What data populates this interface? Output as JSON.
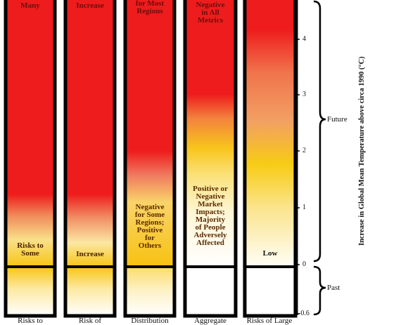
{
  "columns": [
    {
      "top_text": [
        "Many"
      ],
      "low_text": [
        "Risks to",
        "Some"
      ],
      "bottom_label": "Risks to"
    },
    {
      "top_text": [
        "Increase"
      ],
      "low_text": [
        "Increase"
      ],
      "bottom_label": "Risk of"
    },
    {
      "top_text": [
        "for Most",
        "Regions"
      ],
      "mid_text": [
        "Negative",
        "for Some",
        "Regions;",
        "Positive",
        "for",
        "Others"
      ],
      "bottom_label": "Distribution"
    },
    {
      "top_text": [
        "Negative",
        "in All",
        "Metrics"
      ],
      "mid_text": [
        "Positive or",
        "Negative",
        "Market",
        "Impacts;",
        "Majority",
        "of People",
        "Adversely",
        "Affected"
      ],
      "bottom_label": "Aggregate"
    },
    {
      "top_text": [],
      "low_text": [
        "Low"
      ],
      "bottom_label": "Risks of Large"
    }
  ],
  "axis": {
    "title": "Increase in Global Mean Temperature above circa 1990 (°C)",
    "ticks": [
      "4",
      "3",
      "2",
      "1",
      "0",
      "-0.6"
    ]
  },
  "brackets": {
    "future": "Future",
    "past": "Past"
  },
  "colors": {
    "red": "#ee1c1c",
    "orange": "#f47a2a",
    "yellow": "#f9c80e",
    "pale": "#fdf3c6",
    "frame": "#000000"
  }
}
